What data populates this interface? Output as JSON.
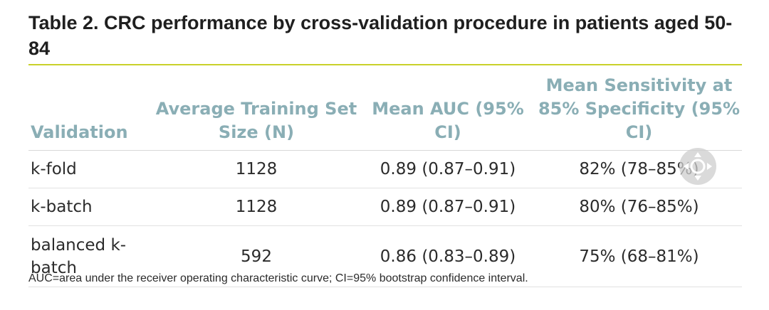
{
  "table": {
    "title": "Table 2. CRC performance by cross-validation procedure in patients aged 50-84",
    "headers": [
      "Validation",
      "Average Training Set Size (N)",
      "Mean AUC (95% CI)",
      "Mean Sensitivity at 85% Specificity (95% CI)"
    ],
    "rows": [
      [
        "k-fold",
        "1128",
        "0.89 (0.87–0.91)",
        "82% (78–85%)"
      ],
      [
        "k-batch",
        "1128",
        "0.89 (0.87–0.91)",
        "80% (76–85%)"
      ],
      [
        "balanced k-batch",
        "592",
        "0.86 (0.83–0.89)",
        "75% (68–81%)"
      ]
    ],
    "footnote": "AUC=area under the receiver operating characteristic curve; CI=95% bootstrap confidence interval."
  },
  "colors": {
    "header_text": "#8aaeb5",
    "title_rule": "#c9d12a",
    "body_text": "#2b2b2b"
  },
  "overlay": {
    "icon": "move-arrows-icon"
  }
}
